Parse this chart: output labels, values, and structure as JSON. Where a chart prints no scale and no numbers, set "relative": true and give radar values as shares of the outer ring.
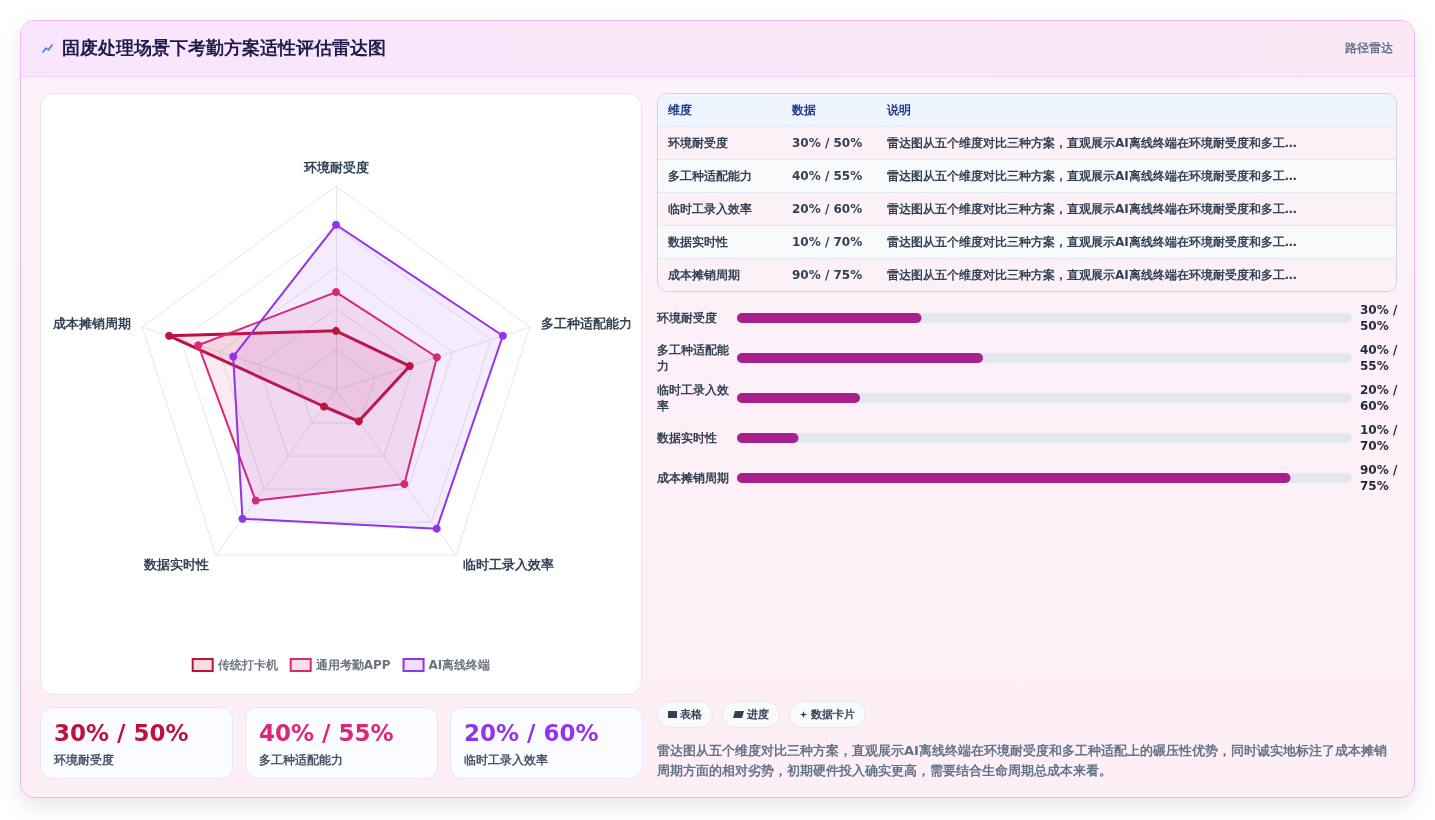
{
  "chart_data": [
    {
      "type": "other",
      "title": "固废处理场景下考勤方案适性评估雷达图",
      "annotations": [
        "路径雷达"
      ]
    },
    {
      "type": "radar",
      "categories": [
        "环境耐受度",
        "多工种适配能力",
        "临时工录入效率",
        "数据实时性",
        "成本摊销周期"
      ],
      "relative": true,
      "series": [
        {
          "name": "传统打卡机",
          "color": "#be123c",
          "values": [
            0.29,
            0.38,
            0.19,
            0.1,
            0.86
          ]
        },
        {
          "name": "通用考勤APP",
          "color": "#db2777",
          "values": [
            0.48,
            0.52,
            0.57,
            0.67,
            0.71
          ]
        },
        {
          "name": "AI离线终端",
          "color": "#9333ea",
          "values": [
            0.81,
            0.86,
            0.84,
            0.78,
            0.53
          ]
        }
      ],
      "legend": "bottom",
      "marker": "circle",
      "grid": true
    },
    {
      "type": "other",
      "annotations": [
        "维度",
        "数据",
        "说明",
        "环境耐受度",
        "30% / 50%",
        "雷达图从五个维度对比三种方案，直观展示AI离线终端在环境耐受度和多工…",
        "多工种适配能力",
        "40% / 55%",
        "雷达图从五个维度对比三种方案，直观展示AI离线终端在环境耐受度和多工…",
        "临时工录入效率",
        "20% / 60%",
        "雷达图从五个维度对比三种方案，直观展示AI离线终端在环境耐受度和多工…",
        "数据实时性",
        "10% / 70%",
        "雷达图从五个维度对比三种方案，直观展示AI离线终端在环境耐受度和多工…",
        "成本摊销周期",
        "90% / 75%",
        "雷达图从五个维度对比三种方案，直观展示AI离线终端在环境耐受度和多工…"
      ]
    },
    {
      "type": "bar",
      "orientation": "horizontal",
      "categories": [
        "环境耐受度",
        "多工种适配能力",
        "临时工录入效率",
        "数据实时性",
        "成本摊销周期"
      ],
      "values": [
        30,
        40,
        20,
        10,
        90
      ],
      "value_labels": [
        "30% / 50%",
        "40% / 55%",
        "20% / 60%",
        "10% / 70%",
        "90% / 75%"
      ],
      "color": "#a8208e",
      "xlim": [
        0,
        100
      ],
      "tick_labels": "y"
    },
    {
      "type": "other",
      "annotations": [
        "30% / 50%",
        "环境耐受度",
        "40% / 55%",
        "多工种适配能力",
        "20% / 60%",
        "临时工录入效率"
      ],
      "colors": [
        "#be123c",
        "#db2777",
        "#9333ea"
      ]
    },
    {
      "type": "other",
      "annotations": [
        "表格",
        "进度",
        "数据卡片",
        "雷达图从五个维度对比三种方案，直观展示AI离线终端在环境耐受度和多工种适配上的碾压性优势，同时诚实地标注了成本摊销周期方面的相对劣势，初期硬件投入确实更高，需要结合生命周期总成本来看。"
      ]
    }
  ]
}
